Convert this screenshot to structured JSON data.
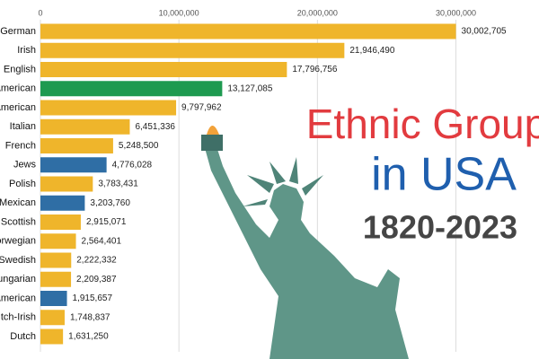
{
  "chart_data": {
    "type": "barh",
    "title": "Ethnic Group",
    "subtitle": "in USA",
    "period": "1820-2023",
    "categories": [
      "German",
      "Irish",
      "English",
      "American",
      "American",
      "Italian",
      "French",
      "Jews",
      "Polish",
      "Mexican",
      "Scottish",
      "orwegian",
      "Swedish",
      "ungarian",
      "American",
      "tch-Irish",
      "Dutch"
    ],
    "values": [
      30002705,
      21946490,
      17796756,
      13127085,
      9797962,
      6451336,
      5248500,
      4776028,
      3783431,
      3203760,
      2915071,
      2564401,
      2222332,
      2209387,
      1915657,
      1748837,
      1631250
    ],
    "value_labels": [
      "30,002,705",
      "21,946,490",
      "17,796,756",
      "13,127,085",
      "9,797,962",
      "6,451,336",
      "5,248,500",
      "4,776,028",
      "3,783,431",
      "3,203,760",
      "2,915,071",
      "2,564,401",
      "2,222,332",
      "2,209,387",
      "1,915,657",
      "1,748,837",
      "1,631,250"
    ],
    "colors": [
      "#efb52b",
      "#efb52b",
      "#efb52b",
      "#1e9a50",
      "#efb52b",
      "#efb52b",
      "#efb52b",
      "#2f6ea5",
      "#efb52b",
      "#2f6ea5",
      "#efb52b",
      "#efb52b",
      "#efb52b",
      "#efb52b",
      "#2f6ea5",
      "#efb52b",
      "#efb52b"
    ],
    "xlim": [
      0,
      36000000
    ],
    "xticks": [
      {
        "value": 0,
        "label": "0"
      },
      {
        "value": 10000000,
        "label": "10,000,000"
      },
      {
        "value": 20000000,
        "label": "20,000,000"
      },
      {
        "value": 30000000,
        "label": "30,000,000"
      }
    ],
    "grid": true
  }
}
